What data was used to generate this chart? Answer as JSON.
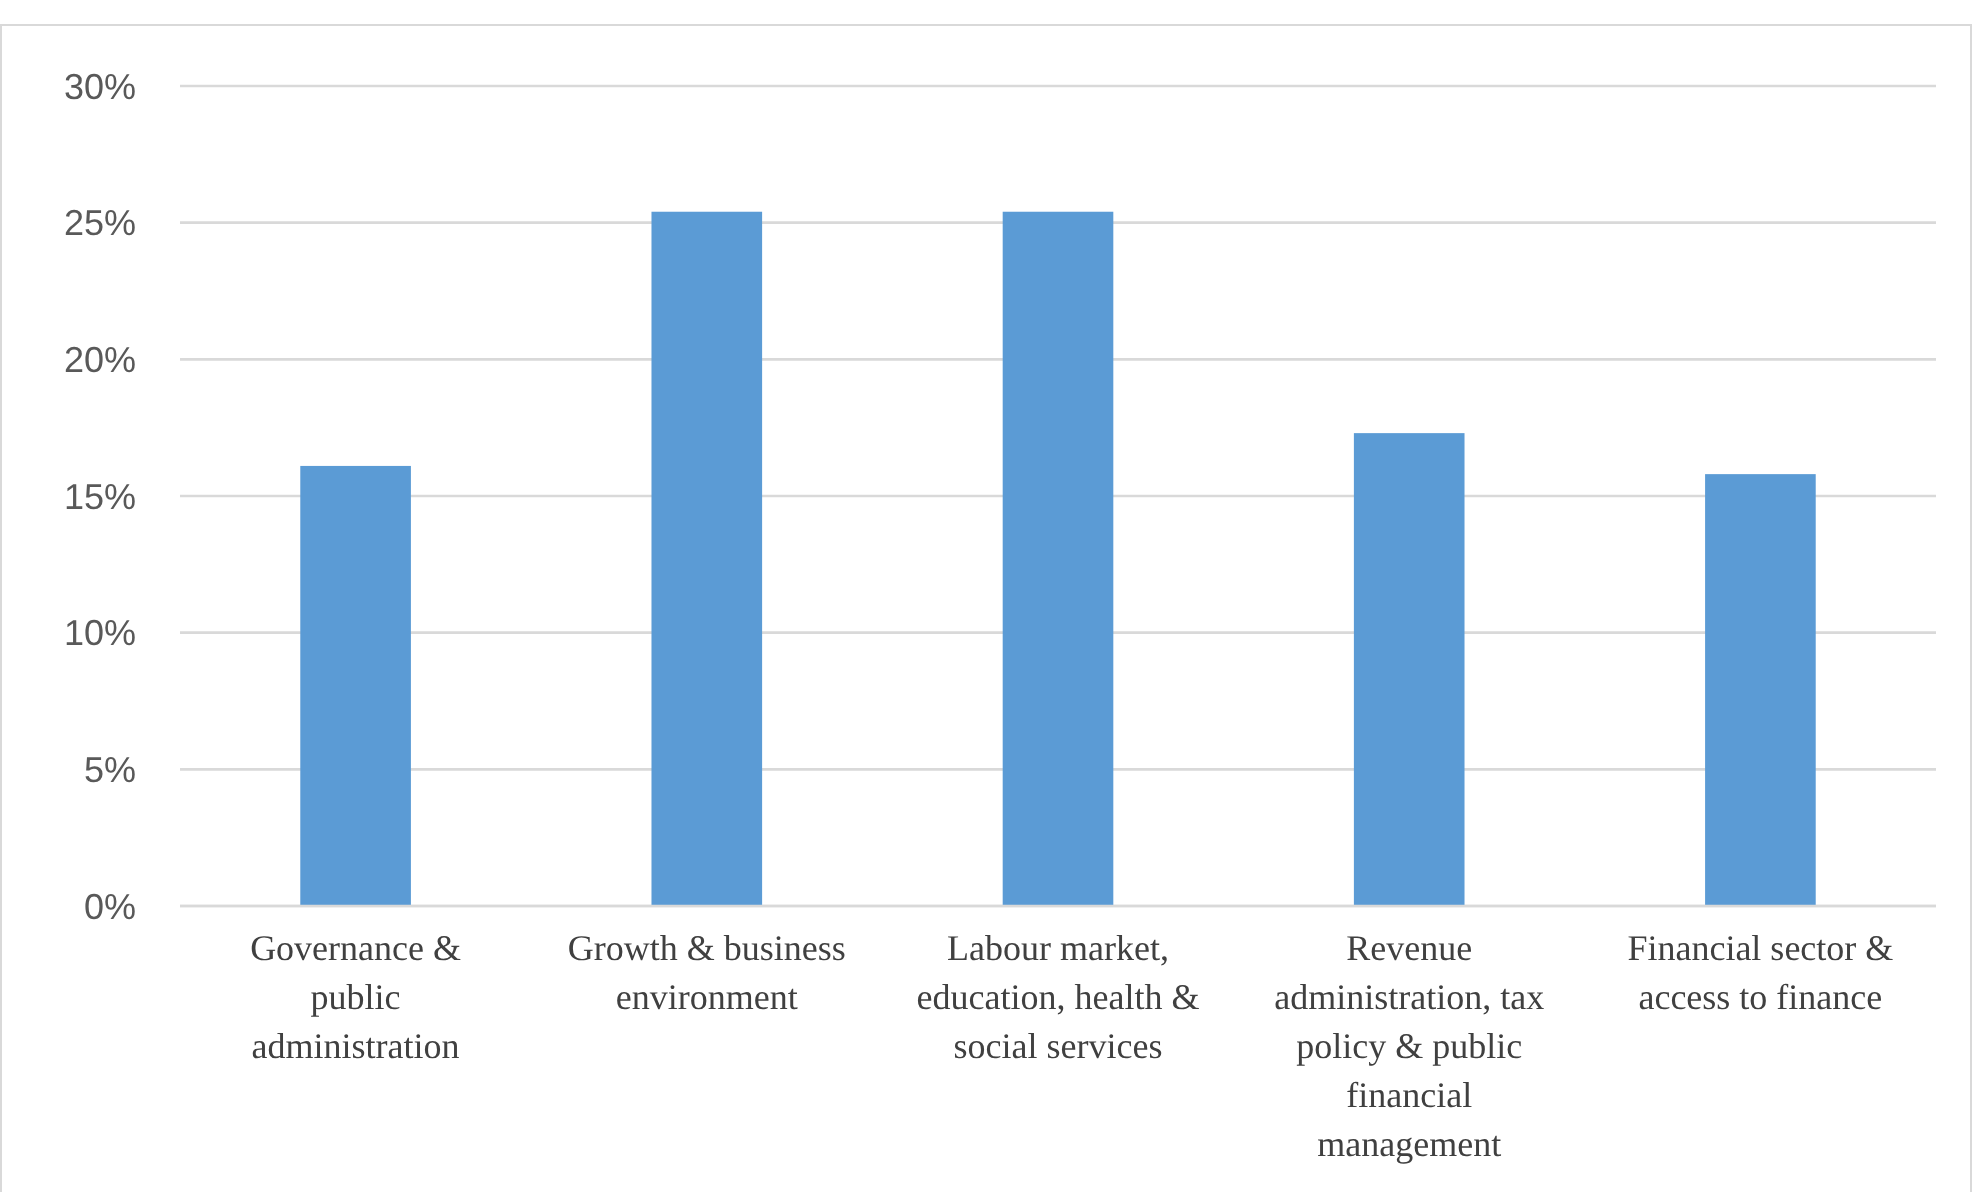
{
  "chart_data": {
    "type": "bar",
    "categories": [
      "Governance & public administration",
      "Growth & business environment",
      "Labour market, education, health & social services",
      "Revenue administration, tax policy & public financial management",
      "Financial sector & access to finance"
    ],
    "values": [
      16.1,
      25.4,
      25.4,
      17.3,
      15.8
    ],
    "color": "#5b9bd5",
    "ylim": [
      0,
      30
    ],
    "yticks": [
      {
        "value": 0,
        "label": "0%"
      },
      {
        "value": 5,
        "label": "5%"
      },
      {
        "value": 10,
        "label": "10%"
      },
      {
        "value": 15,
        "label": "15%"
      },
      {
        "value": 20,
        "label": "20%"
      },
      {
        "value": 25,
        "label": "25%"
      },
      {
        "value": 30,
        "label": "30%"
      }
    ],
    "grid": "y"
  }
}
